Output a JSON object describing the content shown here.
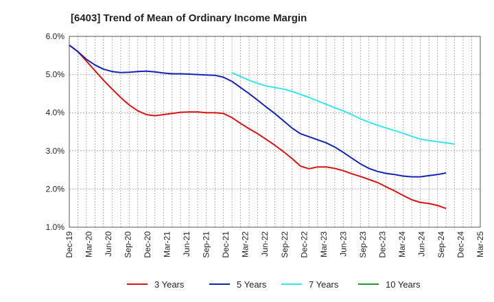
{
  "chart_data": {
    "type": "line",
    "title": "[6403]  Trend of Mean of Ordinary Income Margin",
    "xlabel": "",
    "ylabel": "",
    "ylim": [
      1.0,
      6.0
    ],
    "y_ticks": [
      "1.0%",
      "2.0%",
      "3.0%",
      "4.0%",
      "5.0%",
      "6.0%"
    ],
    "x_tick_labels": [
      "Dec-19",
      "Mar-20",
      "Jun-20",
      "Sep-20",
      "Dec-20",
      "Mar-21",
      "Jun-21",
      "Sep-21",
      "Dec-21",
      "Mar-22",
      "Jun-22",
      "Sep-22",
      "Dec-22",
      "Mar-23",
      "Jun-23",
      "Sep-23",
      "Dec-23",
      "Mar-24",
      "Jun-24",
      "Sep-24",
      "Dec-24",
      "Mar-25"
    ],
    "grid": true,
    "legend_position": "bottom",
    "series": [
      {
        "name": "3 Years",
        "color": "#dd1111",
        "start_index": 0,
        "values": [
          5.77,
          5.6,
          5.35,
          5.1,
          4.85,
          4.62,
          4.4,
          4.2,
          4.05,
          3.95,
          3.92,
          3.95,
          3.98,
          4.01,
          4.02,
          4.02,
          4.0,
          4.0,
          3.98,
          3.87,
          3.72,
          3.58,
          3.45,
          3.3,
          3.15,
          2.98,
          2.8,
          2.6,
          2.53,
          2.58,
          2.58,
          2.54,
          2.48,
          2.4,
          2.33,
          2.25,
          2.17,
          2.06,
          1.95,
          1.83,
          1.72,
          1.65,
          1.62,
          1.57,
          1.49
        ]
      },
      {
        "name": "5 Years",
        "color": "#1122bb",
        "start_index": 0,
        "values": [
          5.77,
          5.6,
          5.4,
          5.25,
          5.14,
          5.08,
          5.05,
          5.06,
          5.08,
          5.09,
          5.07,
          5.04,
          5.02,
          5.02,
          5.01,
          5.0,
          4.99,
          4.98,
          4.93,
          4.82,
          4.66,
          4.5,
          4.33,
          4.15,
          3.98,
          3.79,
          3.6,
          3.45,
          3.37,
          3.29,
          3.21,
          3.1,
          2.96,
          2.81,
          2.66,
          2.54,
          2.46,
          2.41,
          2.38,
          2.34,
          2.32,
          2.32,
          2.35,
          2.38,
          2.42
        ]
      },
      {
        "name": "7 Years",
        "color": "#33e5ee",
        "start_index": 19,
        "values": [
          5.05,
          4.95,
          4.85,
          4.77,
          4.7,
          4.66,
          4.62,
          4.56,
          4.48,
          4.4,
          4.31,
          4.22,
          4.13,
          4.05,
          3.95,
          3.84,
          3.75,
          3.67,
          3.6,
          3.53,
          3.46,
          3.38,
          3.31,
          3.27,
          3.24,
          3.21,
          3.18
        ]
      },
      {
        "name": "10 Years",
        "color": "#229922",
        "start_index": 0,
        "values": []
      }
    ]
  }
}
